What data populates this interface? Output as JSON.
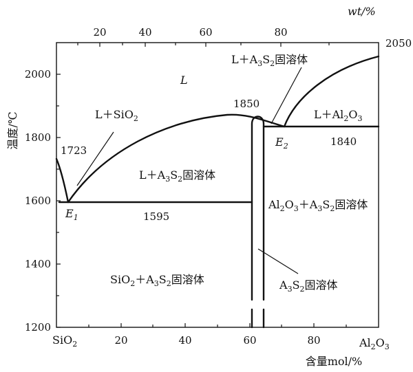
{
  "y_axis": {
    "label": "温度/℃",
    "ticks": [
      "1200",
      "1400",
      "1600",
      "1800",
      "2000"
    ]
  },
  "x_axis_bottom": {
    "label": "含量mol/%",
    "left_end": "SiO",
    "left_end_sub": "2",
    "right_end": "Al",
    "right_end_sub1": "2",
    "right_end_mid": "O",
    "right_end_sub2": "3",
    "ticks": [
      "20",
      "40",
      "60",
      "80"
    ]
  },
  "x_axis_top": {
    "label": "wt/%",
    "ticks": [
      "20",
      "40",
      "60",
      "80"
    ]
  },
  "temperatures": {
    "t2050": "2050",
    "t1850": "1850",
    "t1840": "1840",
    "t1723": "1723",
    "t1595": "1595"
  },
  "points": {
    "e1": "E",
    "e1_sub": "1",
    "e2": "E",
    "e2_sub": "2"
  },
  "regions": {
    "liquid": "L",
    "l_sio2_a": "L＋SiO",
    "l_sio2_sub": "2",
    "l_a3s2_a": "L＋A",
    "l_a3s2_sub1": "3",
    "l_a3s2_b": "S",
    "l_a3s2_sub2": "2",
    "l_a3s2_c": "固溶体",
    "l_a3s2_top_a": "L＋A",
    "l_a3s2_top_sub1": "3",
    "l_a3s2_top_b": "S",
    "l_a3s2_top_sub2": "2",
    "l_a3s2_top_c": "固溶体",
    "l_al2o3_a": "L＋Al",
    "l_al2o3_sub1": "2",
    "l_al2o3_b": "O",
    "l_al2o3_sub2": "3",
    "al2o3_a3s2_a": "Al",
    "al2o3_a3s2_sub1": "2",
    "al2o3_a3s2_b": "O",
    "al2o3_a3s2_sub2": "3",
    "al2o3_a3s2_c": "＋A",
    "al2o3_a3s2_sub3": "3",
    "al2o3_a3s2_d": "S",
    "al2o3_a3s2_sub4": "2",
    "al2o3_a3s2_e": "固溶体",
    "sio2_a3s2_a": "SiO",
    "sio2_a3s2_sub1": "2",
    "sio2_a3s2_b": "＋A",
    "sio2_a3s2_sub2": "3",
    "sio2_a3s2_c": "S",
    "sio2_a3s2_sub3": "2",
    "sio2_a3s2_d": "固溶体",
    "a3s2_ss_a": "A",
    "a3s2_ss_sub1": "3",
    "a3s2_ss_b": "S",
    "a3s2_ss_sub2": "2",
    "a3s2_ss_c": "固溶体"
  }
}
